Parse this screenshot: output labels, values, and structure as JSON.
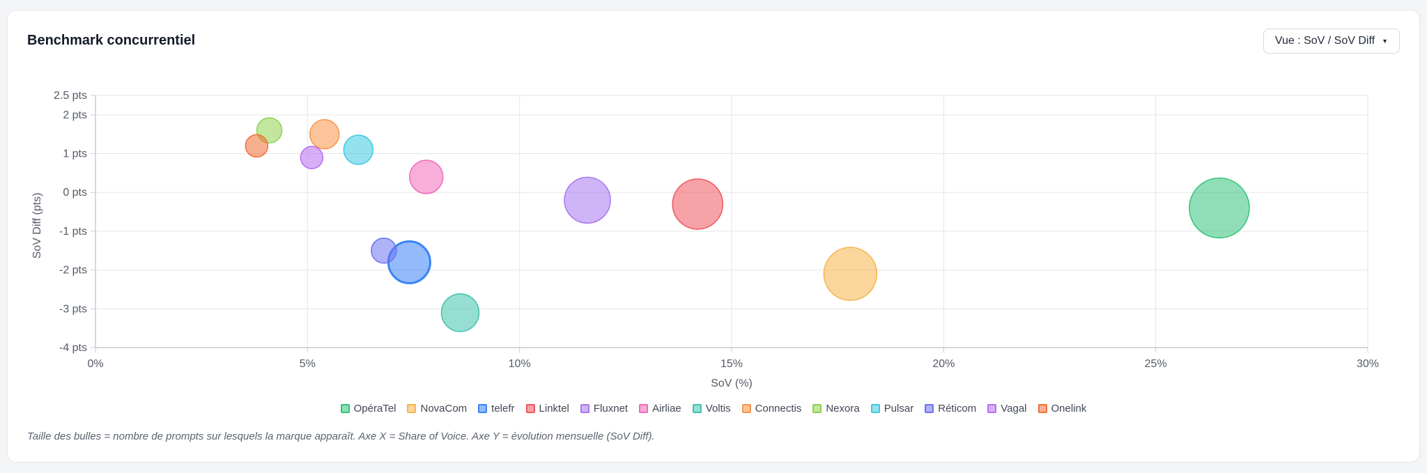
{
  "card": {
    "title": "Benchmark concurrentiel",
    "view_button_label": "Vue : SoV / SoV Diff",
    "footnote": "Taille des bulles = nombre de prompts sur lesquels la marque apparaît. Axe X = Share of Voice. Axe Y = évolution mensuelle (SoV Diff)."
  },
  "chart_data": {
    "type": "scatter",
    "subtype": "bubble",
    "xlabel": "SoV (%)",
    "ylabel": "SoV Diff (pts)",
    "xlim": [
      0,
      30
    ],
    "ylim": [
      -4,
      2.5
    ],
    "x_ticks": [
      0,
      5,
      10,
      15,
      20,
      25,
      30
    ],
    "x_tick_labels": [
      "0%",
      "5%",
      "10%",
      "15%",
      "20%",
      "25%",
      "30%"
    ],
    "y_ticks": [
      2.5,
      2,
      1,
      0,
      -1,
      -2,
      -3,
      -4
    ],
    "y_tick_labels": [
      "2.5 pts",
      "2 pts",
      "1 pts",
      "0 pts",
      "-1 pts",
      "-2 pts",
      "-3 pts",
      "-4 pts"
    ],
    "grid": true,
    "legend_position": "bottom",
    "size_encoding": "prompts",
    "series": [
      {
        "name": "OpéraTel",
        "x": 26.5,
        "y": -0.4,
        "size": 43,
        "color": "#34c27c",
        "highlight": false
      },
      {
        "name": "NovaCom",
        "x": 17.8,
        "y": -2.1,
        "size": 38,
        "color": "#f5b44c",
        "highlight": false
      },
      {
        "name": "telefr",
        "x": 7.4,
        "y": -1.8,
        "size": 30,
        "color": "#3b82f6",
        "highlight": true
      },
      {
        "name": "Linktel",
        "x": 14.2,
        "y": -0.3,
        "size": 36,
        "color": "#f0565c",
        "highlight": false
      },
      {
        "name": "Fluxnet",
        "x": 11.6,
        "y": -0.2,
        "size": 33,
        "color": "#a777f0",
        "highlight": false
      },
      {
        "name": "Airliae",
        "x": 7.8,
        "y": 0.4,
        "size": 24,
        "color": "#f06bb8",
        "highlight": false
      },
      {
        "name": "Voltis",
        "x": 8.6,
        "y": -3.1,
        "size": 27,
        "color": "#3fc2ad",
        "highlight": false
      },
      {
        "name": "Connectis",
        "x": 5.4,
        "y": 1.5,
        "size": 21,
        "color": "#f99448",
        "highlight": false
      },
      {
        "name": "Nexora",
        "x": 4.1,
        "y": 1.6,
        "size": 18,
        "color": "#8fd14f",
        "highlight": false
      },
      {
        "name": "Pulsar",
        "x": 6.2,
        "y": 1.1,
        "size": 21,
        "color": "#3fc8e0",
        "highlight": false
      },
      {
        "name": "Réticom",
        "x": 6.8,
        "y": -1.5,
        "size": 18,
        "color": "#6c72f0",
        "highlight": false
      },
      {
        "name": "Vagal",
        "x": 5.1,
        "y": 0.9,
        "size": 16,
        "color": "#b86ef0",
        "highlight": false
      },
      {
        "name": "Onelink",
        "x": 3.8,
        "y": 1.2,
        "size": 16,
        "color": "#f26d35",
        "highlight": false
      }
    ]
  }
}
